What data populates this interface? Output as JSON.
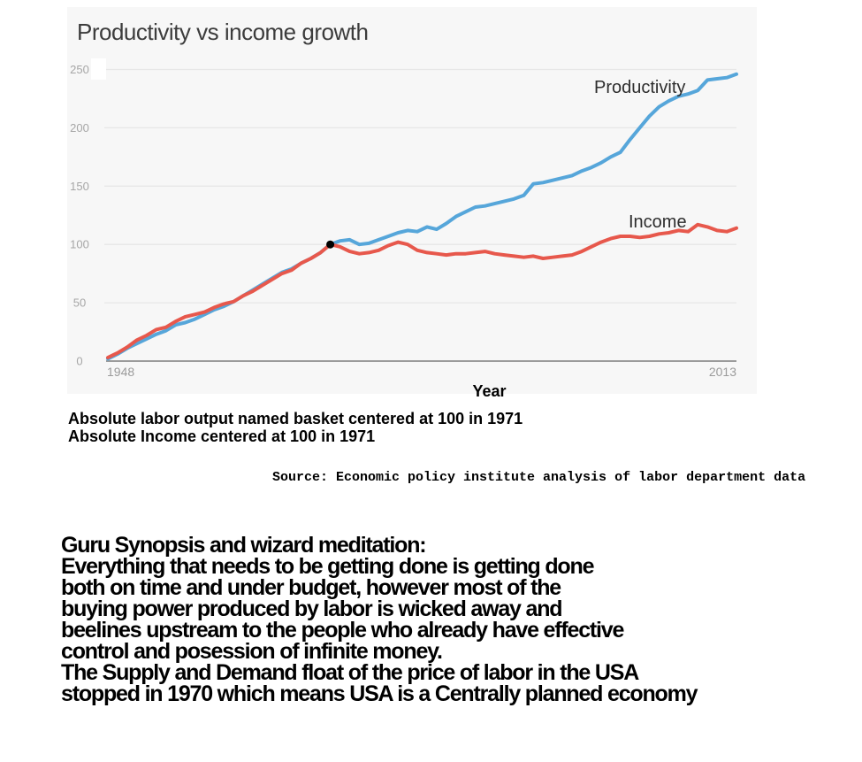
{
  "chart": {
    "title": "Productivity vs income growth",
    "x_axis_label": "Year",
    "series_labels": [
      "Productivity",
      "Income"
    ]
  },
  "chart_data": {
    "type": "line",
    "title": "Productivity vs income growth",
    "xlabel": "Year",
    "ylabel": "",
    "x_range": [
      1948,
      2013
    ],
    "ylim": [
      0,
      250
    ],
    "yticks": [
      0,
      50,
      100,
      150,
      200,
      250
    ],
    "xticks": [
      1948,
      2013
    ],
    "grid": true,
    "legend_position": "inline-labels",
    "colors": {
      "panel_bg": "#f7f7f7",
      "grid": "#e7e7e7",
      "axis": "#9b9b9b",
      "tick_text": "#a6a6a6",
      "xtick_text": "#9b9b9b",
      "series_label_text": "#2d2d2d",
      "marker": "#000000"
    },
    "x": [
      1948,
      1949,
      1950,
      1951,
      1952,
      1953,
      1954,
      1955,
      1956,
      1957,
      1958,
      1959,
      1960,
      1961,
      1962,
      1963,
      1964,
      1965,
      1966,
      1967,
      1968,
      1969,
      1970,
      1971,
      1972,
      1973,
      1974,
      1975,
      1976,
      1977,
      1978,
      1979,
      1980,
      1981,
      1982,
      1983,
      1984,
      1985,
      1986,
      1987,
      1988,
      1989,
      1990,
      1991,
      1992,
      1993,
      1994,
      1995,
      1996,
      1997,
      1998,
      1999,
      2000,
      2001,
      2002,
      2003,
      2004,
      2005,
      2006,
      2007,
      2008,
      2009,
      2010,
      2011,
      2012,
      2013
    ],
    "series": [
      {
        "name": "Productivity",
        "color": "#56a6da",
        "values": [
          2,
          6,
          11,
          15,
          19,
          23,
          26,
          31,
          33,
          36,
          40,
          44,
          47,
          51,
          56,
          61,
          66,
          71,
          76,
          79,
          84,
          88,
          93,
          100,
          103,
          104,
          100,
          101,
          104,
          107,
          110,
          112,
          111,
          115,
          113,
          118,
          124,
          128,
          132,
          133,
          135,
          137,
          139,
          142,
          152,
          153,
          155,
          157,
          159,
          163,
          166,
          170,
          175,
          179,
          190,
          200,
          210,
          218,
          223,
          227,
          229,
          232,
          241,
          242,
          243,
          246
        ]
      },
      {
        "name": "Income",
        "color": "#e7584c",
        "values": [
          3,
          7,
          12,
          18,
          22,
          27,
          29,
          34,
          38,
          40,
          42,
          46,
          49,
          51,
          56,
          60,
          65,
          70,
          75,
          78,
          84,
          88,
          93,
          100,
          98,
          94,
          92,
          93,
          95,
          99,
          102,
          100,
          95,
          93,
          92,
          91,
          92,
          92,
          93,
          94,
          92,
          91,
          90,
          89,
          90,
          88,
          89,
          90,
          91,
          94,
          98,
          102,
          105,
          107,
          107,
          106,
          107,
          109,
          110,
          112,
          111,
          117,
          115,
          112,
          111,
          114
        ]
      }
    ],
    "marker": {
      "x": 1971,
      "y": 100
    }
  },
  "captions": {
    "line1": "Absolute labor output named basket centered at 100 in 1971",
    "line2": "Absolute Income centered at 100 in 1971"
  },
  "source": "Source: Economic policy institute analysis of labor department data",
  "synopsis": "Guru Synopsis and wizard meditation:\nEverything that needs to be getting done is getting done\nboth on time and under budget, however most of the\nbuying power produced by labor is wicked away and\nbeelines upstream to the people who already have effective\ncontrol and posession of infinite money.\nThe Supply and Demand float of the price of labor in the USA\nstopped in 1970 which means USA is a Centrally planned economy"
}
